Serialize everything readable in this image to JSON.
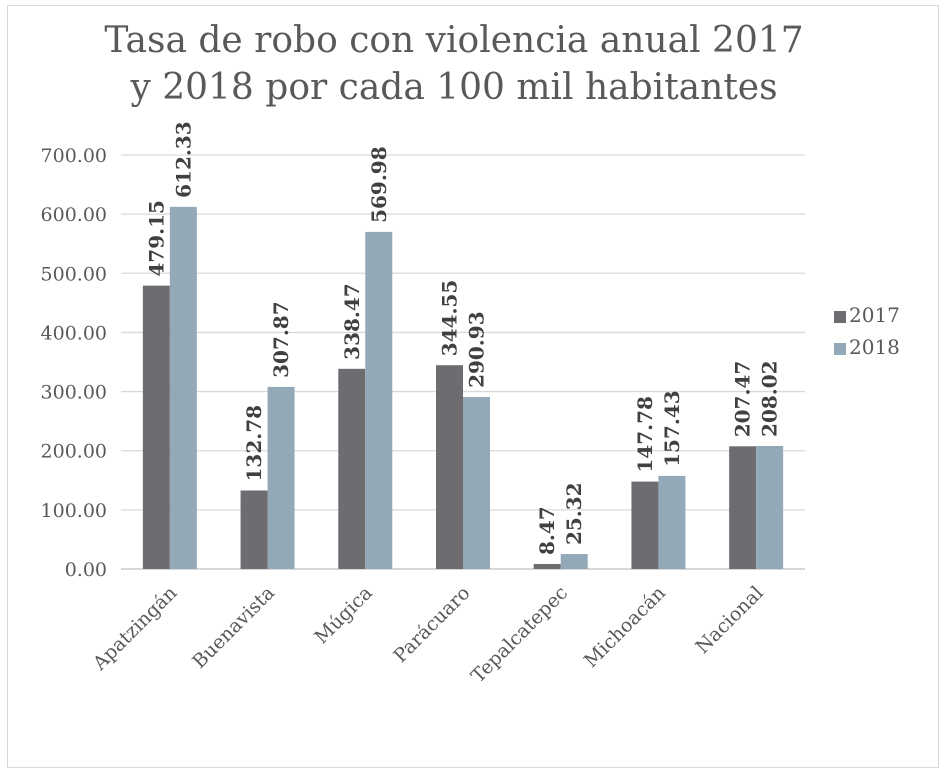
{
  "chart_data": {
    "type": "bar",
    "title": "Tasa de robo con violencia  anual 2017 y 2018 por cada 100 mil habitantes",
    "title_lines": [
      "Tasa de robo con violencia  anual 2017",
      "y 2018 por cada 100 mil habitantes"
    ],
    "categories": [
      "Apatzingán",
      "Buenavista",
      "Múgica",
      "Parácuaro",
      "Tepalcatepec",
      "Michoacán",
      "Nacional"
    ],
    "series": [
      {
        "name": "2017",
        "color": "#6e6c70",
        "values": [
          479.15,
          132.78,
          338.47,
          344.55,
          8.47,
          147.78,
          207.47
        ],
        "labels": [
          "479.15",
          "132.78",
          "338.47",
          "344.55",
          "8.47",
          "147.78",
          "207.47"
        ]
      },
      {
        "name": "2018",
        "color": "#93a9b8",
        "values": [
          612.33,
          307.87,
          569.98,
          290.93,
          25.32,
          157.43,
          208.02
        ],
        "labels": [
          "612.33",
          "307.87",
          "569.98",
          "290.93",
          "25.32",
          "157.43",
          "208.02"
        ]
      }
    ],
    "ylim": [
      0,
      700
    ],
    "yticks": [
      "0.00",
      "100.00",
      "200.00",
      "300.00",
      "400.00",
      "500.00",
      "600.00",
      "700.00"
    ],
    "grid": true,
    "legend_position": "right",
    "xlabel": "",
    "ylabel": ""
  }
}
